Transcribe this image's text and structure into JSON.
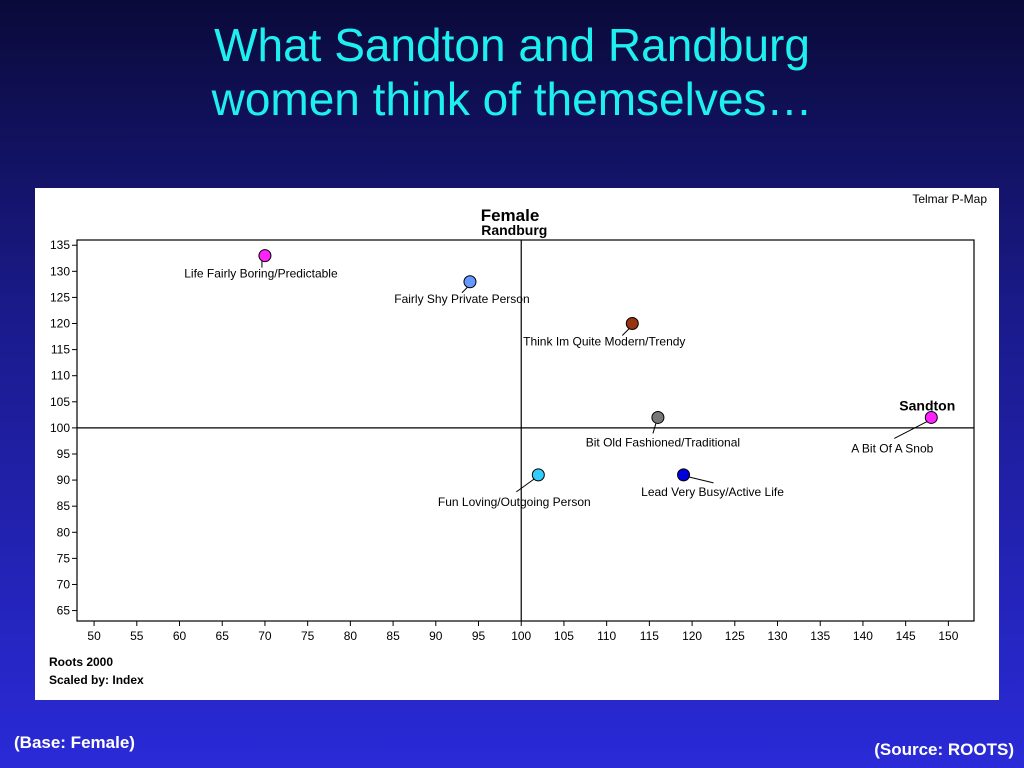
{
  "slide": {
    "title_line1": "What Sandton and Randburg",
    "title_line2": "women think of themselves…",
    "base_note": "(Base: Female)",
    "source_note": "(Source: ROOTS)"
  },
  "colors": {
    "background_top": "#0a0a3a",
    "background_bottom": "#2a2ad8",
    "title": "#1ef0f0",
    "footer_text": "#ffffff"
  },
  "chart_data": {
    "type": "scatter",
    "title": "Female",
    "corner_label": "Telmar P-Map",
    "footnote_line1": "Roots 2000",
    "footnote_line2": "Scaled by: Index",
    "xlim": [
      48,
      153
    ],
    "ylim": [
      63,
      136
    ],
    "xticks": [
      50,
      55,
      60,
      65,
      70,
      75,
      80,
      85,
      90,
      95,
      100,
      105,
      110,
      115,
      120,
      125,
      130,
      135,
      140,
      145,
      150
    ],
    "yticks": [
      65,
      70,
      75,
      80,
      85,
      90,
      95,
      100,
      105,
      110,
      115,
      120,
      125,
      130,
      135
    ],
    "reference_lines": {
      "x": 100,
      "y": 100
    },
    "anchors": [
      {
        "label": "Randburg",
        "x": 100,
        "y": 135
      },
      {
        "label": "Sandton",
        "x": 148,
        "y": 102
      }
    ],
    "points": [
      {
        "label": "Life Fairly Boring/Predictable",
        "x": 70,
        "y": 133,
        "color": "#ff22ff"
      },
      {
        "label": "Fairly Shy Private Person",
        "x": 94,
        "y": 128,
        "color": "#6699ff"
      },
      {
        "label": "Think Im Quite Modern/Trendy",
        "x": 113,
        "y": 120,
        "color": "#993311"
      },
      {
        "label": "Bit Old Fashioned/Traditional",
        "x": 116,
        "y": 102,
        "color": "#777777"
      },
      {
        "label": "A Bit Of A Snob",
        "x": 148,
        "y": 102,
        "color": "#ff22ff"
      },
      {
        "label": "Fun Loving/Outgoing Person",
        "x": 102,
        "y": 91,
        "color": "#33ccff"
      },
      {
        "label": "Lead Very Busy/Active Life",
        "x": 119,
        "y": 91,
        "color": "#0000dd"
      }
    ]
  }
}
